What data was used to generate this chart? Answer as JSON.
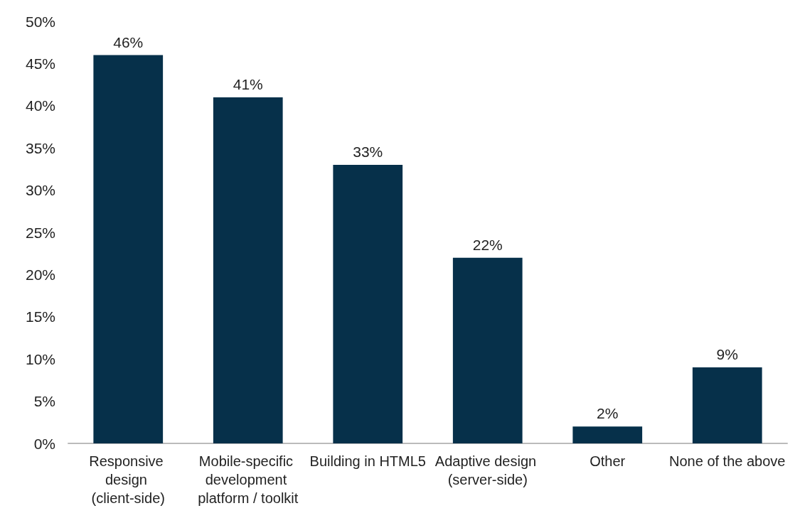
{
  "chart_data": {
    "type": "bar",
    "categories": [
      "Responsive design (client-side)",
      "Mobile-specific development platform / toolkit",
      "Building in HTML5",
      "Adaptive design (server-side)",
      "Other",
      "None of the above"
    ],
    "values": [
      46,
      41,
      33,
      22,
      2,
      9
    ],
    "value_labels": [
      "46%",
      "41%",
      "33%",
      "22%",
      "2%",
      "9%"
    ],
    "color": "#06304a",
    "ylim": [
      0,
      50
    ],
    "yticks": [
      {
        "value": 0,
        "label": "0%"
      },
      {
        "value": 5,
        "label": "5%"
      },
      {
        "value": 10,
        "label": "10%"
      },
      {
        "value": 15,
        "label": "15%"
      },
      {
        "value": 20,
        "label": "20%"
      },
      {
        "value": 25,
        "label": "25%"
      },
      {
        "value": 30,
        "label": "30%"
      },
      {
        "value": 35,
        "label": "35%"
      },
      {
        "value": 40,
        "label": "40%"
      },
      {
        "value": 45,
        "label": "45%"
      },
      {
        "value": 50,
        "label": "50%"
      }
    ],
    "grid": false
  }
}
